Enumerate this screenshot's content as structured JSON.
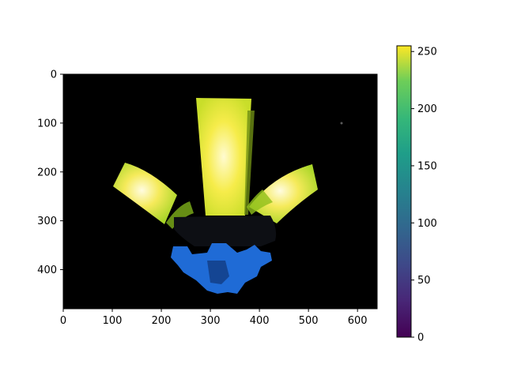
{
  "chart_data": {
    "type": "heatmap",
    "title": "",
    "xlabel": "",
    "ylabel": "",
    "xlim": [
      0,
      640
    ],
    "ylim": [
      480,
      0
    ],
    "x_ticks": [
      0,
      100,
      200,
      300,
      400,
      500,
      600
    ],
    "y_ticks": [
      0,
      100,
      200,
      300,
      400
    ],
    "colorbar": {
      "colormap": "viridis",
      "range": [
        0,
        255
      ],
      "ticks": [
        0,
        50,
        100,
        150,
        200,
        250
      ]
    },
    "image_content": "grayscale intensity image rendered with viridis colormap; bright yellow fan-shaped regions (values ~230-255) on a black background, with blue object region in lower center"
  },
  "colors": {
    "background": "#000000",
    "bright": "#fde725",
    "mid_bright": "#d7e219",
    "green": "#addc30",
    "blue": "#1f6bd6"
  }
}
